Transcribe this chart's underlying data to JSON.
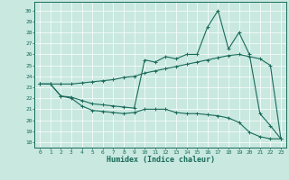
{
  "xlabel": "Humidex (Indice chaleur)",
  "bg_color": "#c8e8e0",
  "line_color": "#1a6b5a",
  "grid_color": "#ffffff",
  "xlim": [
    -0.5,
    23.5
  ],
  "ylim": [
    17.5,
    30.8
  ],
  "xticks": [
    0,
    1,
    2,
    3,
    4,
    5,
    6,
    7,
    8,
    9,
    10,
    11,
    12,
    13,
    14,
    15,
    16,
    17,
    18,
    19,
    20,
    21,
    22,
    23
  ],
  "yticks": [
    18,
    19,
    20,
    21,
    22,
    23,
    24,
    25,
    26,
    27,
    28,
    29,
    30
  ],
  "line1_x": [
    0,
    1,
    2,
    3,
    4,
    5,
    6,
    7,
    8,
    9,
    10,
    11,
    12,
    13,
    14,
    15,
    16,
    17,
    18,
    19,
    20,
    21,
    22,
    23
  ],
  "line1_y": [
    23.3,
    23.3,
    22.2,
    22.0,
    21.3,
    20.9,
    20.8,
    20.7,
    20.6,
    20.7,
    21.0,
    21.0,
    21.0,
    20.7,
    20.6,
    20.6,
    20.5,
    20.4,
    20.2,
    19.8,
    18.9,
    18.5,
    18.3,
    18.3
  ],
  "line2_x": [
    0,
    1,
    2,
    3,
    4,
    5,
    6,
    7,
    8,
    9,
    10,
    11,
    12,
    13,
    14,
    15,
    16,
    17,
    18,
    19,
    20,
    21,
    22,
    23
  ],
  "line2_y": [
    23.3,
    23.3,
    23.3,
    23.3,
    23.4,
    23.5,
    23.6,
    23.7,
    23.9,
    24.0,
    24.3,
    24.5,
    24.7,
    24.9,
    25.1,
    25.3,
    25.5,
    25.7,
    25.9,
    26.0,
    25.8,
    25.6,
    25.0,
    18.3
  ],
  "line3_x": [
    0,
    1,
    2,
    3,
    4,
    5,
    6,
    7,
    8,
    9,
    10,
    11,
    12,
    13,
    14,
    15,
    16,
    17,
    18,
    19,
    20,
    21,
    22,
    23
  ],
  "line3_y": [
    23.3,
    23.3,
    22.2,
    22.1,
    21.8,
    21.5,
    21.4,
    21.3,
    21.2,
    21.1,
    25.5,
    25.3,
    25.8,
    25.6,
    26.0,
    26.0,
    28.5,
    30.0,
    26.5,
    28.0,
    26.0,
    20.6,
    19.5,
    18.3
  ]
}
